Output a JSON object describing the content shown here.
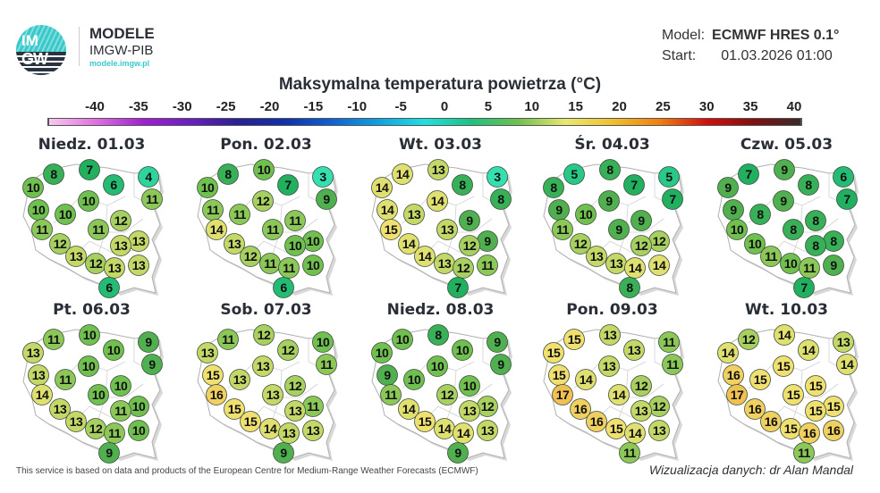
{
  "header": {
    "logo_text": "IMGW",
    "brand_title": "MODELE",
    "brand_subtitle": "IMGW-PIB",
    "brand_url": "modele.imgw.pl",
    "model_label": "Model:",
    "model_value": "ECMWF HRES 0.1°",
    "start_label": "Start:",
    "start_value": "01.03.2026 01:00"
  },
  "title": "Maksymalna temperatura powietrza (°C)",
  "colorbar": {
    "ticks": [
      "-40",
      "-35",
      "-30",
      "-25",
      "-20",
      "-15",
      "-10",
      "-5",
      "0",
      "5",
      "10",
      "15",
      "20",
      "25",
      "30",
      "35",
      "40"
    ],
    "colors": [
      "#f8c8f0",
      "#e070e0",
      "#a020d0",
      "#6a20c0",
      "#2a2090",
      "#1030a8",
      "#1060d0",
      "#10a0e0",
      "#20e0e0",
      "#20c080",
      "#70c050",
      "#e8e870",
      "#f0c030",
      "#f08010",
      "#d01010",
      "#801010",
      "#3a2a2a"
    ]
  },
  "days": [
    {
      "label": "Niedz. 01.03",
      "values": [
        8,
        7,
        6,
        4,
        10,
        10,
        11,
        10,
        10,
        12,
        11,
        11,
        12,
        13,
        13,
        13,
        12,
        13,
        13,
        6
      ]
    },
    {
      "label": "Pon. 02.03",
      "values": [
        8,
        10,
        7,
        3,
        10,
        12,
        9,
        11,
        11,
        11,
        14,
        11,
        13,
        10,
        10,
        12,
        11,
        11,
        10,
        6
      ]
    },
    {
      "label": "Wt. 03.03",
      "values": [
        14,
        13,
        8,
        3,
        14,
        14,
        8,
        14,
        13,
        9,
        15,
        13,
        14,
        9,
        12,
        14,
        13,
        12,
        11,
        7
      ]
    },
    {
      "label": "Śr. 04.03",
      "values": [
        5,
        8,
        7,
        5,
        8,
        9,
        7,
        9,
        10,
        9,
        11,
        9,
        12,
        12,
        12,
        13,
        13,
        14,
        14,
        8
      ]
    },
    {
      "label": "Czw. 05.03",
      "values": [
        7,
        9,
        8,
        6,
        9,
        9,
        7,
        9,
        8,
        8,
        10,
        8,
        10,
        8,
        8,
        11,
        10,
        11,
        9,
        7
      ]
    },
    {
      "label": "Pt. 06.03",
      "values": [
        11,
        10,
        10,
        9,
        13,
        10,
        9,
        13,
        11,
        10,
        14,
        10,
        13,
        10,
        11,
        13,
        12,
        11,
        10,
        9
      ]
    },
    {
      "label": "Sob. 07.03",
      "values": [
        11,
        12,
        12,
        10,
        13,
        13,
        11,
        15,
        13,
        12,
        16,
        13,
        15,
        11,
        13,
        15,
        14,
        13,
        13,
        9
      ]
    },
    {
      "label": "Niedz. 08.03",
      "values": [
        10,
        8,
        10,
        9,
        10,
        10,
        9,
        9,
        10,
        10,
        11,
        12,
        14,
        12,
        13,
        15,
        14,
        14,
        13,
        9
      ]
    },
    {
      "label": "Pon. 09.03",
      "values": [
        15,
        13,
        13,
        11,
        15,
        13,
        11,
        15,
        14,
        12,
        17,
        14,
        16,
        12,
        13,
        16,
        15,
        14,
        13,
        11
      ]
    },
    {
      "label": "Wt. 10.03",
      "values": [
        12,
        14,
        14,
        13,
        14,
        15,
        14,
        16,
        15,
        15,
        17,
        15,
        16,
        15,
        15,
        16,
        15,
        16,
        16,
        11
      ]
    }
  ],
  "footer": {
    "attribution": "This service is based on data and products of the European Centre for Medium-Range Weather Forecasts (ECMWF)",
    "credit": "Wizualizacja danych: dr Alan Mandal"
  }
}
